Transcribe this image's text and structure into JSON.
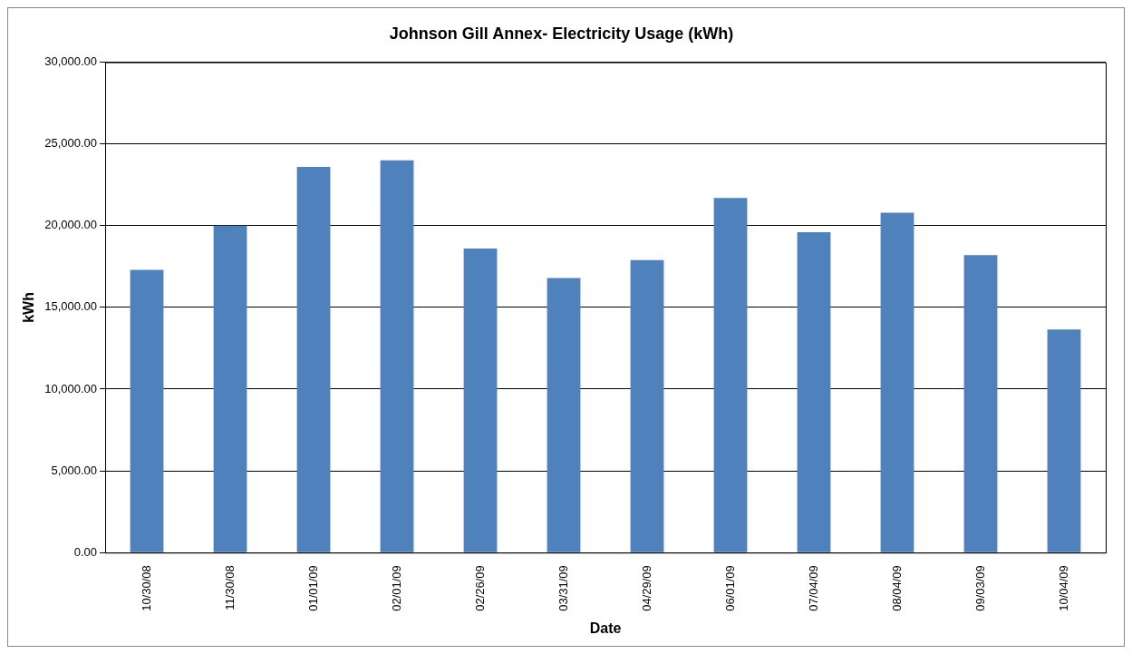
{
  "chart_data": {
    "type": "bar",
    "title": "Johnson Gill Annex- Electricity Usage (kWh)",
    "xlabel": "Date",
    "ylabel": "kWh",
    "categories": [
      "10/30/08",
      "11/30/08",
      "01/01/09",
      "02/01/09",
      "02/26/09",
      "03/31/09",
      "04/29/09",
      "06/01/09",
      "07/04/09",
      "08/04/09",
      "09/03/09",
      "10/04/09"
    ],
    "values": [
      17300,
      20000,
      23600,
      24000,
      18600,
      16800,
      17900,
      21700,
      19600,
      20800,
      18200,
      13650
    ],
    "color": "#4f81bd",
    "ylim": [
      0,
      30000
    ],
    "yticks": [
      {
        "value": 0,
        "label": "0.00"
      },
      {
        "value": 5000,
        "label": "5,000.00"
      },
      {
        "value": 10000,
        "label": "10,000.00"
      },
      {
        "value": 15000,
        "label": "15,000.00"
      },
      {
        "value": 20000,
        "label": "20,000.00"
      },
      {
        "value": 25000,
        "label": "25,000.00"
      },
      {
        "value": 30000,
        "label": "30,000.00"
      }
    ],
    "grid": "y",
    "legend": false
  }
}
